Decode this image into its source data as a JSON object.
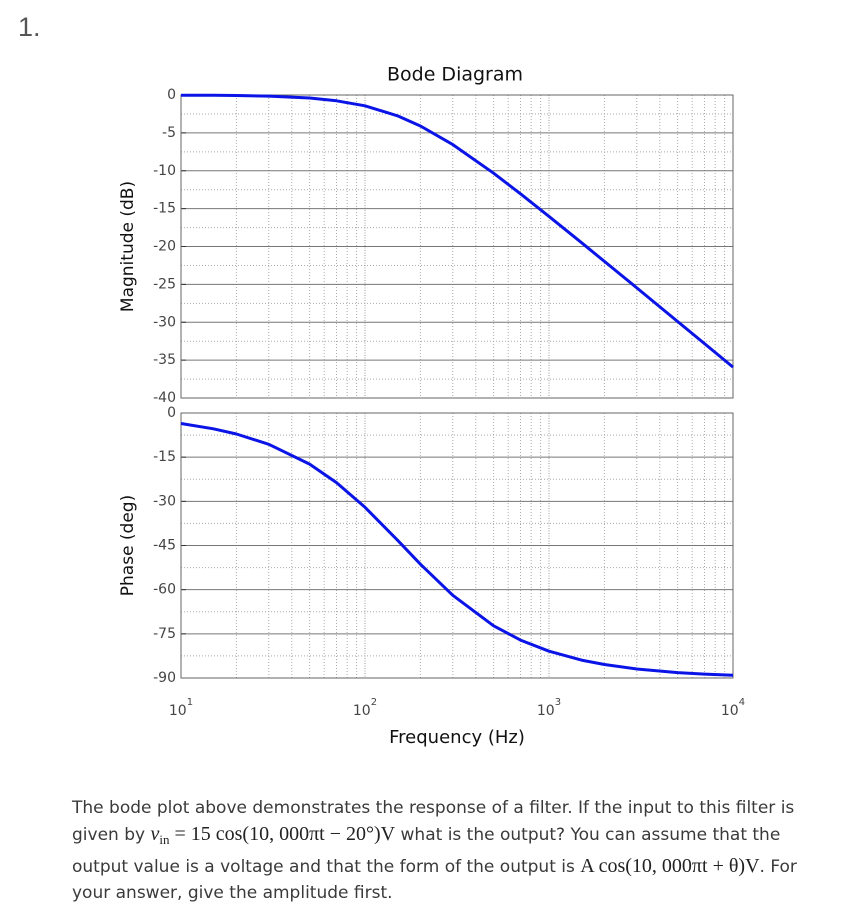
{
  "question_number": "1.",
  "question": {
    "parts": [
      "The bode plot above demonstrates the response of a filter. If the input to this filter is given by ",
      "v",
      "in",
      " = 15 cos(10, 000πt − 20°)V",
      " what is the output? You can assume that the output value is a voltage and that the form of the output is ",
      "A cos(10, 000πt + θ)V",
      ". For your answer, give the amplitude first."
    ]
  },
  "chart_data": [
    {
      "type": "line",
      "title": "Bode Diagram",
      "ylabel": "Magnitude (dB)",
      "xscale": "log",
      "grid": true,
      "x": [
        10,
        15,
        20,
        30,
        50,
        70,
        100,
        150,
        200,
        300,
        500,
        700,
        1000,
        1500,
        2000,
        3000,
        5000,
        7000,
        10000
      ],
      "xlim": [
        10,
        10000
      ],
      "xticks": [
        10,
        100,
        1000,
        10000
      ],
      "ylim": [
        -40,
        0
      ],
      "yticks": [
        0,
        -5,
        -10,
        -15,
        -20,
        -25,
        -30,
        -35,
        -40
      ],
      "series": [
        {
          "name": "Magnitude",
          "color": "#0a14e6",
          "values": [
            -0.02,
            -0.04,
            -0.07,
            -0.15,
            -0.4,
            -0.76,
            -1.43,
            -2.74,
            -4.09,
            -6.55,
            -10.32,
            -13.04,
            -16.03,
            -19.49,
            -21.97,
            -25.47,
            -29.9,
            -32.82,
            -35.92
          ]
        }
      ]
    },
    {
      "type": "line",
      "ylabel": "Phase (deg)",
      "xlabel": "Frequency (Hz)",
      "xscale": "log",
      "grid": true,
      "x": [
        10,
        15,
        20,
        30,
        50,
        70,
        100,
        150,
        200,
        300,
        500,
        700,
        1000,
        1500,
        2000,
        3000,
        5000,
        7000,
        10000
      ],
      "xlim": [
        10,
        10000
      ],
      "xticks": [
        {
          "value": 10,
          "label": "10",
          "exponent": "1"
        },
        {
          "value": 100,
          "label": "10",
          "exponent": "2"
        },
        {
          "value": 1000,
          "label": "10",
          "exponent": "3"
        },
        {
          "value": 10000,
          "label": "10",
          "exponent": "4"
        }
      ],
      "ylim": [
        -90,
        0
      ],
      "yticks": [
        0,
        -15,
        -30,
        -45,
        -60,
        -75,
        -90
      ],
      "series": [
        {
          "name": "Phase",
          "color": "#0a14e6",
          "values": [
            -3.58,
            -5.36,
            -7.13,
            -10.62,
            -17.35,
            -23.63,
            -32.01,
            -43.15,
            -51.34,
            -61.93,
            -72.26,
            -77.12,
            -80.91,
            -83.91,
            -85.43,
            -86.95,
            -88.17,
            -88.69,
            -89.08
          ]
        }
      ]
    }
  ]
}
